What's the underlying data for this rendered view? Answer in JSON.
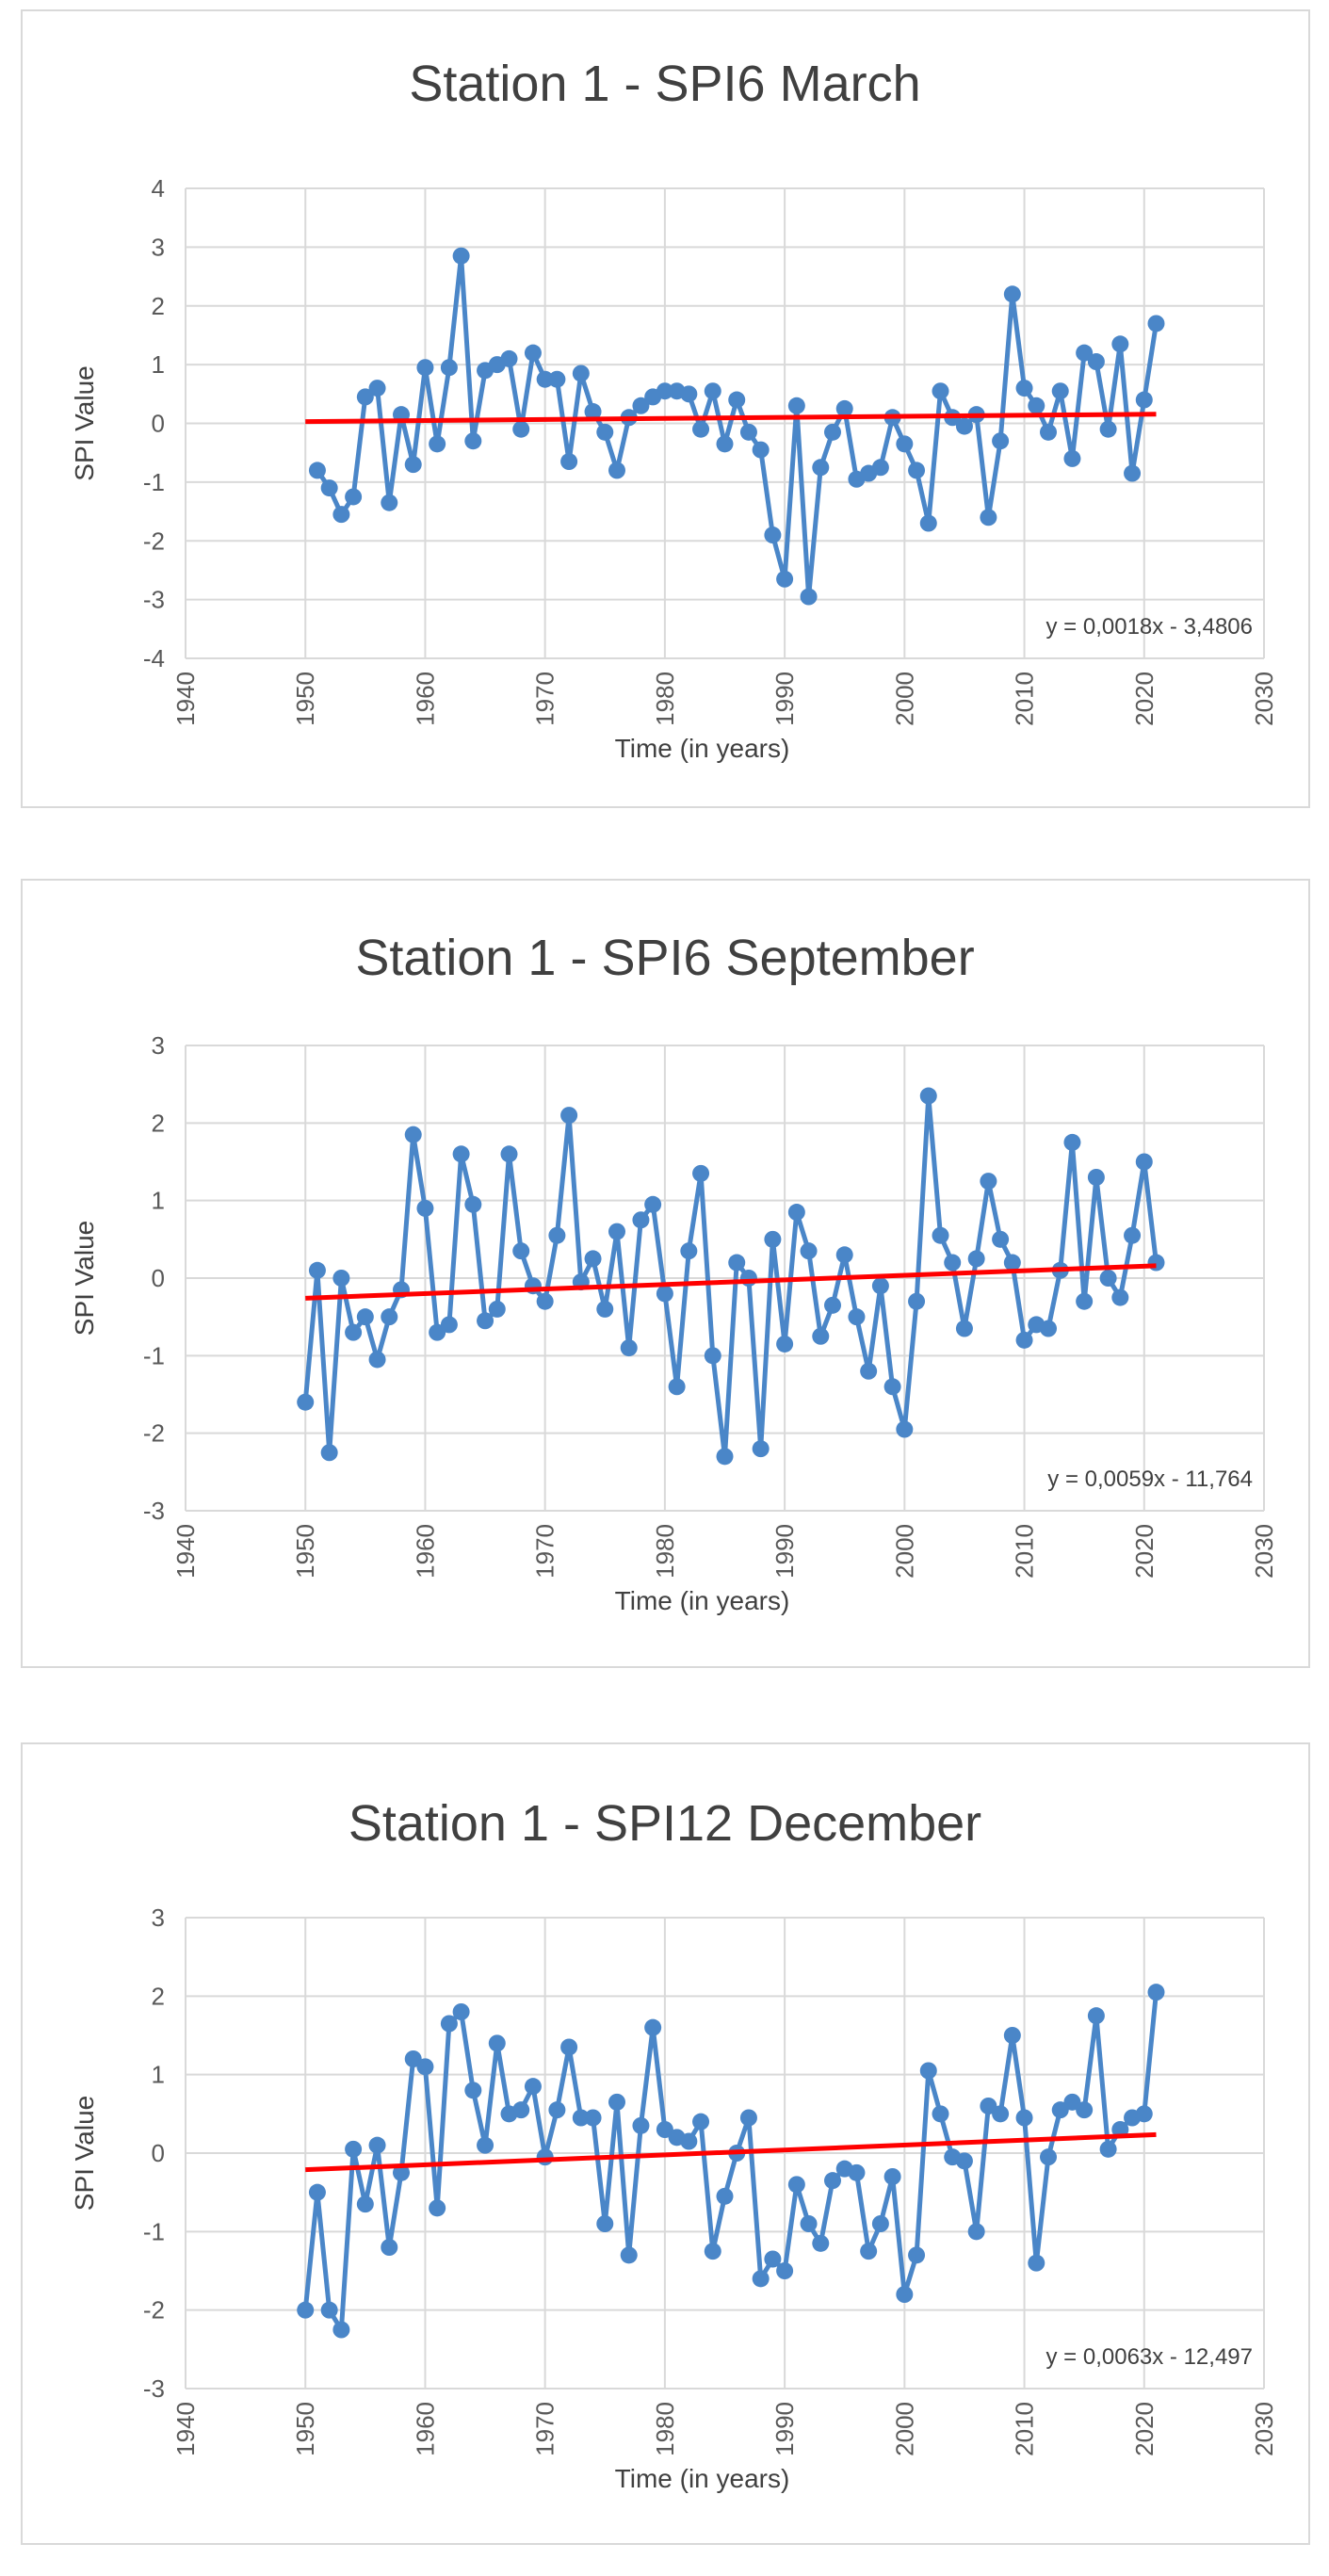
{
  "chart_data": [
    {
      "type": "scatter",
      "title": "Station 1 - SPI6 March",
      "xlabel": "Time (in years)",
      "ylabel": "SPI Value",
      "xlim": [
        1940,
        2030
      ],
      "ylim": [
        -4,
        4
      ],
      "xticks": [
        1940,
        1950,
        1960,
        1970,
        1980,
        1990,
        2000,
        2010,
        2020,
        2030
      ],
      "yticks": [
        -4,
        -3,
        -2,
        -1,
        0,
        1,
        2,
        3,
        4
      ],
      "grid": true,
      "series": [
        {
          "name": "SPI6 March",
          "color": "#4a86c8",
          "x": [
            1951,
            1952,
            1953,
            1954,
            1955,
            1956,
            1957,
            1958,
            1959,
            1960,
            1961,
            1962,
            1963,
            1964,
            1965,
            1966,
            1967,
            1968,
            1969,
            1970,
            1971,
            1972,
            1973,
            1974,
            1975,
            1976,
            1977,
            1978,
            1979,
            1980,
            1981,
            1982,
            1983,
            1984,
            1985,
            1986,
            1987,
            1988,
            1989,
            1990,
            1991,
            1992,
            1993,
            1994,
            1995,
            1996,
            1997,
            1998,
            1999,
            2000,
            2001,
            2002,
            2003,
            2004,
            2005,
            2006,
            2007,
            2008,
            2009,
            2010,
            2011,
            2012,
            2013,
            2014,
            2015,
            2016,
            2017,
            2018,
            2019,
            2020,
            2021
          ],
          "y": [
            -0.8,
            -1.1,
            -1.55,
            -1.25,
            0.45,
            0.6,
            -1.35,
            0.15,
            -0.7,
            0.95,
            -0.35,
            0.95,
            2.85,
            -0.3,
            0.9,
            1.0,
            1.1,
            -0.1,
            1.2,
            0.75,
            0.75,
            -0.65,
            0.85,
            0.2,
            -0.15,
            -0.8,
            0.1,
            0.3,
            0.45,
            0.55,
            0.55,
            0.5,
            -0.1,
            0.55,
            -0.35,
            0.4,
            -0.15,
            -0.45,
            -1.9,
            -2.65,
            0.3,
            -2.95,
            -0.75,
            -0.15,
            0.25,
            -0.95,
            -0.85,
            -0.75,
            0.1,
            -0.35,
            -0.8,
            -1.7,
            0.55,
            0.1,
            -0.05,
            0.15,
            -1.6,
            -0.3,
            2.2,
            0.6,
            0.3,
            -0.15,
            0.55,
            -0.6,
            1.2,
            1.05,
            -0.1,
            1.35,
            -0.85,
            0.4,
            1.7
          ]
        }
      ],
      "trendline": {
        "color": "#ff0000",
        "slope": 0.0018,
        "intercept": -3.4806,
        "x_range": [
          1950,
          2021
        ],
        "equation": "y = 0,0018x - 3,4806"
      }
    },
    {
      "type": "scatter",
      "title": "Station 1 - SPI6 September",
      "xlabel": "Time (in years)",
      "ylabel": "SPI Value",
      "xlim": [
        1940,
        2030
      ],
      "ylim": [
        -3,
        3
      ],
      "xticks": [
        1940,
        1950,
        1960,
        1970,
        1980,
        1990,
        2000,
        2010,
        2020,
        2030
      ],
      "yticks": [
        -3,
        -2,
        -1,
        0,
        1,
        2,
        3
      ],
      "grid": true,
      "series": [
        {
          "name": "SPI6 September",
          "color": "#4a86c8",
          "x": [
            1950,
            1951,
            1952,
            1953,
            1954,
            1955,
            1956,
            1957,
            1958,
            1959,
            1960,
            1961,
            1962,
            1963,
            1964,
            1965,
            1966,
            1967,
            1968,
            1969,
            1970,
            1971,
            1972,
            1973,
            1974,
            1975,
            1976,
            1977,
            1978,
            1979,
            1980,
            1981,
            1982,
            1983,
            1984,
            1985,
            1986,
            1987,
            1988,
            1989,
            1990,
            1991,
            1992,
            1993,
            1994,
            1995,
            1996,
            1997,
            1998,
            1999,
            2000,
            2001,
            2002,
            2003,
            2004,
            2005,
            2006,
            2007,
            2008,
            2009,
            2010,
            2011,
            2012,
            2013,
            2014,
            2015,
            2016,
            2017,
            2018,
            2019,
            2020,
            2021
          ],
          "y": [
            -1.6,
            0.1,
            -2.25,
            0.0,
            -0.7,
            -0.5,
            -1.05,
            -0.5,
            -0.15,
            1.85,
            0.9,
            -0.7,
            -0.6,
            1.6,
            0.95,
            -0.55,
            -0.4,
            1.6,
            0.35,
            -0.1,
            -0.3,
            0.55,
            2.1,
            -0.05,
            0.25,
            -0.4,
            0.6,
            -0.9,
            0.75,
            0.95,
            -0.2,
            -1.4,
            0.35,
            1.35,
            -1.0,
            -2.3,
            0.2,
            0.0,
            -2.2,
            0.5,
            -0.85,
            0.85,
            0.35,
            -0.75,
            -0.35,
            0.3,
            -0.5,
            -1.2,
            -0.1,
            -1.4,
            -1.95,
            -0.3,
            2.35,
            0.55,
            0.2,
            -0.65,
            0.25,
            1.25,
            0.5,
            0.2,
            -0.8,
            -0.6,
            -0.65,
            0.1,
            1.75,
            -0.3,
            1.3,
            0.0,
            -0.25,
            0.55,
            1.5,
            0.2
          ]
        }
      ],
      "trendline": {
        "color": "#ff0000",
        "slope": 0.0059,
        "intercept": -11.764,
        "x_range": [
          1950,
          2021
        ],
        "equation": "y = 0,0059x - 11,764"
      }
    },
    {
      "type": "scatter",
      "title": "Station 1 - SPI12 December",
      "xlabel": "Time (in years)",
      "ylabel": "SPI Value",
      "xlim": [
        1940,
        2030
      ],
      "ylim": [
        -3,
        3
      ],
      "xticks": [
        1940,
        1950,
        1960,
        1970,
        1980,
        1990,
        2000,
        2010,
        2020,
        2030
      ],
      "yticks": [
        -3,
        -2,
        -1,
        0,
        1,
        2,
        3
      ],
      "grid": true,
      "series": [
        {
          "name": "SPI12 December",
          "color": "#4a86c8",
          "x": [
            1950,
            1951,
            1952,
            1953,
            1954,
            1955,
            1956,
            1957,
            1958,
            1959,
            1960,
            1961,
            1962,
            1963,
            1964,
            1965,
            1966,
            1967,
            1968,
            1969,
            1970,
            1971,
            1972,
            1973,
            1974,
            1975,
            1976,
            1977,
            1978,
            1979,
            1980,
            1981,
            1982,
            1983,
            1984,
            1985,
            1986,
            1987,
            1988,
            1989,
            1990,
            1991,
            1992,
            1993,
            1994,
            1995,
            1996,
            1997,
            1998,
            1999,
            2000,
            2001,
            2002,
            2003,
            2004,
            2005,
            2006,
            2007,
            2008,
            2009,
            2010,
            2011,
            2012,
            2013,
            2014,
            2015,
            2016,
            2017,
            2018,
            2019,
            2020,
            2021
          ],
          "y": [
            -2.0,
            -0.5,
            -2.0,
            -2.25,
            0.05,
            -0.65,
            0.1,
            -1.2,
            -0.25,
            1.2,
            1.1,
            -0.7,
            1.65,
            1.8,
            0.8,
            0.1,
            1.4,
            0.5,
            0.55,
            0.85,
            -0.05,
            0.55,
            1.35,
            0.45,
            0.45,
            -0.9,
            0.65,
            -1.3,
            0.35,
            1.6,
            0.3,
            0.2,
            0.15,
            0.4,
            -1.25,
            -0.55,
            0.0,
            0.45,
            -1.6,
            -1.35,
            -1.5,
            -0.4,
            -0.9,
            -1.15,
            -0.35,
            -0.2,
            -0.25,
            -1.25,
            -0.9,
            -0.3,
            -1.8,
            -1.3,
            1.05,
            0.5,
            -0.05,
            -0.1,
            -1.0,
            0.6,
            0.5,
            1.5,
            0.45,
            -1.4,
            -0.05,
            0.55,
            0.65,
            0.55,
            1.75,
            0.05,
            0.3,
            0.45,
            0.5,
            2.05
          ]
        }
      ],
      "trendline": {
        "color": "#ff0000",
        "slope": 0.0063,
        "intercept": -12.497,
        "x_range": [
          1950,
          2021
        ],
        "equation": "y = 0,0063x - 12,497"
      }
    }
  ]
}
